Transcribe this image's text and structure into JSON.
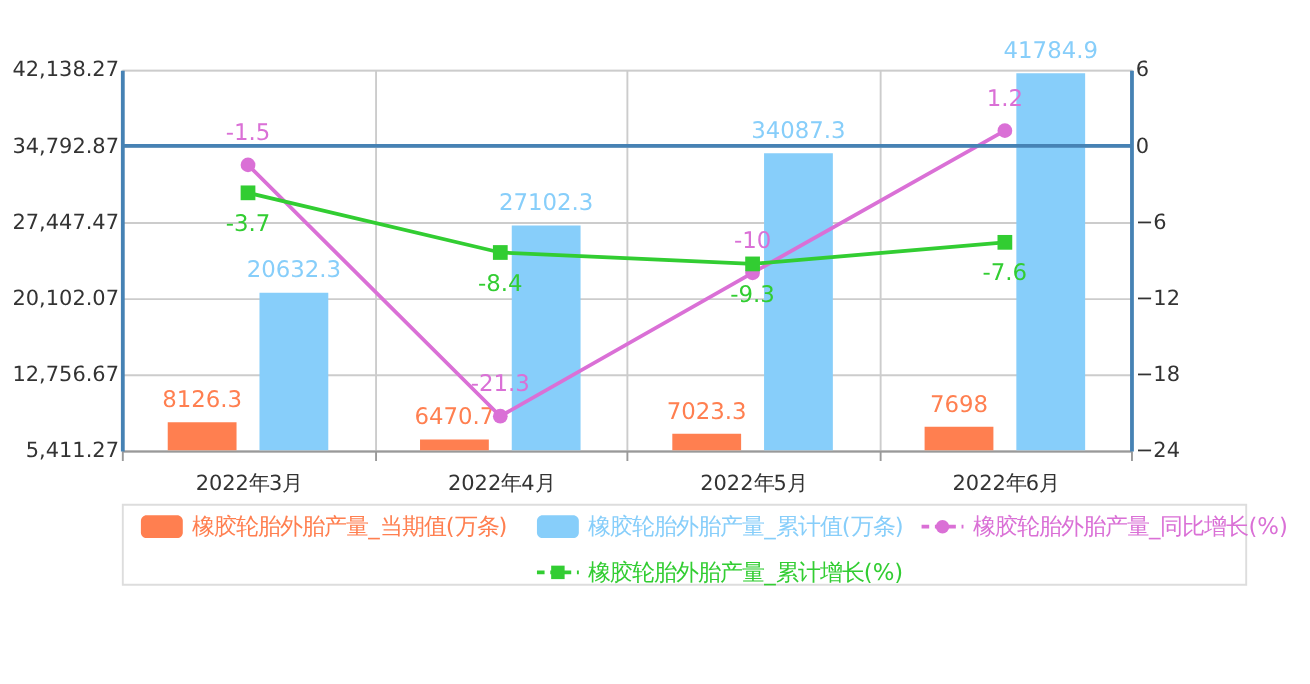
{
  "chart_data": {
    "type": "bar",
    "categories": [
      "2022年3月",
      "2022年4月",
      "2022年5月",
      "2022年6月"
    ],
    "series": [
      {
        "name": "橡胶轮胎外胎产量_当期值(万条)",
        "color": "#ff7f50",
        "values": [
          8126.3,
          6470.7,
          7023.3,
          7698
        ]
      },
      {
        "name": "橡胶轮胎外胎产量_累计值(万条)",
        "color": "#87cefa",
        "values": [
          20632.3,
          27102.3,
          34087.3,
          41784.9
        ]
      },
      {
        "name": "橡胶轮胎外胎产量_同比增长(%)",
        "color": "#da70d6",
        "type": "line",
        "axis": "y2",
        "marker": "circle",
        "values": [
          -1.5,
          -21.3,
          -10,
          1.2
        ]
      },
      {
        "name": "橡胶轮胎外胎产量_累计增长(%)",
        "color": "#32cd32",
        "type": "line",
        "axis": "y2",
        "marker": "square",
        "values": [
          -3.7,
          -8.4,
          -9.3,
          -7.6
        ]
      }
    ],
    "ylim": [
      5411.27,
      42138.27
    ],
    "yticks": [
      {
        "value": 5411.27,
        "label": "5,411.27"
      },
      {
        "value": 12756.67,
        "label": "12,756.67"
      },
      {
        "value": 20102.07,
        "label": "20,102.07"
      },
      {
        "value": 27447.47,
        "label": "27,447.47"
      },
      {
        "value": 34792.87,
        "label": "34,792.87"
      },
      {
        "value": 42138.27,
        "label": "42,138.27"
      }
    ],
    "y2lim": [
      -24,
      6
    ],
    "y2ticks": [
      -24,
      -18,
      -12,
      -6,
      0,
      6
    ],
    "ref_lines": [
      {
        "axis": "y2",
        "value": 0,
        "color": "#4682b4"
      }
    ],
    "data_labels": true,
    "grid": true,
    "legend": "bottom",
    "line_style": "solid"
  }
}
